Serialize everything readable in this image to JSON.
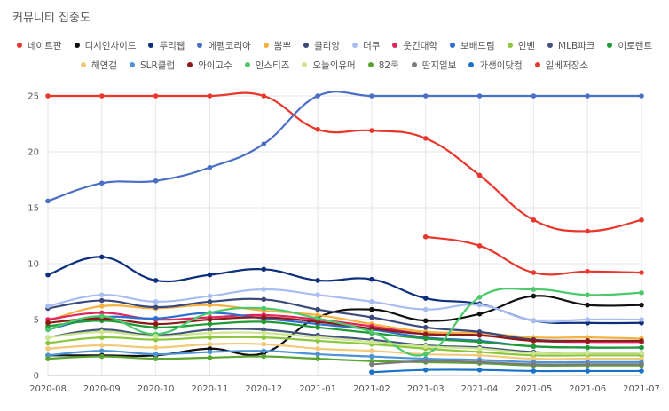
{
  "title": "커뮤니티 집중도",
  "chart_data": {
    "type": "line",
    "title": "커뮤니티 집중도",
    "xlabel": "",
    "ylabel": "",
    "ylim": [
      0,
      25
    ],
    "yticks": [
      0,
      5,
      10,
      15,
      20,
      25
    ],
    "grid": true,
    "legend_position": "top",
    "x": [
      "2020-08",
      "2020-09",
      "2020-10",
      "2020-11",
      "2020-12",
      "2021-01",
      "2021-02",
      "2021-03",
      "2021-04",
      "2021-05",
      "2021-06",
      "2021-07"
    ],
    "series": [
      {
        "name": "네이트판",
        "color": "#e8372c",
        "values": [
          25,
          25,
          25,
          25,
          25,
          22,
          21.9,
          21.2,
          17.9,
          13.9,
          12.9,
          13.9
        ]
      },
      {
        "name": "디시인사이드",
        "color": "#111111",
        "values": [
          1.8,
          1.8,
          1.8,
          2.4,
          2,
          5.2,
          5.9,
          4.9,
          5.5,
          7.1,
          6.3,
          6.3
        ]
      },
      {
        "name": "루리웹",
        "color": "#0e2f7d",
        "values": [
          9,
          10.6,
          8.5,
          9,
          9.5,
          8.5,
          8.6,
          6.9,
          6.4,
          4.9,
          4.7,
          4.7
        ]
      },
      {
        "name": "에펨코리아",
        "color": "#4a6fc4",
        "values": [
          15.6,
          17.2,
          17.4,
          18.6,
          20.7,
          25,
          25,
          25,
          25,
          25,
          25,
          25
        ]
      },
      {
        "name": "뽐뿌",
        "color": "#f4b140",
        "values": [
          4.9,
          6.2,
          6,
          6.3,
          5.8,
          5.4,
          4.6,
          3.9,
          3.8,
          3.4,
          3.4,
          3.3
        ]
      },
      {
        "name": "클리앙",
        "color": "#3b4a7a",
        "values": [
          6,
          6.7,
          6.1,
          6.6,
          6.8,
          5.9,
          5.2,
          4.3,
          3.9,
          3.2,
          3.1,
          3
        ]
      },
      {
        "name": "더쿠",
        "color": "#a8bdf0",
        "values": [
          6.2,
          7.2,
          6.6,
          7.1,
          7.7,
          7.2,
          6.6,
          5.9,
          6.3,
          4.9,
          5,
          5
        ]
      },
      {
        "name": "웃긴대학",
        "color": "#e0245e",
        "values": [
          5,
          5.6,
          5,
          5.2,
          5.4,
          5,
          4.4,
          3.7,
          3.6,
          3.1,
          3,
          3
        ]
      },
      {
        "name": "보배드림",
        "color": "#2b6fd0",
        "values": [
          4.1,
          5.2,
          5.1,
          5.6,
          5.1,
          4.6,
          4.1,
          3.4,
          3.1,
          2.6,
          2.5,
          2.5
        ]
      },
      {
        "name": "인벤",
        "color": "#8cc63f",
        "values": [
          2.9,
          3.4,
          3.2,
          3.4,
          3.4,
          3.1,
          2.8,
          2.4,
          2.1,
          1.8,
          1.8,
          1.8
        ]
      },
      {
        "name": "MLB파크",
        "color": "#44567e",
        "values": [
          3.4,
          4.1,
          3.6,
          4.1,
          4.1,
          3.6,
          3.2,
          2.7,
          2.5,
          2.1,
          2,
          2
        ]
      },
      {
        "name": "이토렌트",
        "color": "#1f9a35",
        "values": [
          4.4,
          4.9,
          4.3,
          4.6,
          4.8,
          4.3,
          3.8,
          3.3,
          3,
          2.6,
          2.5,
          2.5
        ]
      },
      {
        "name": "해연갤",
        "color": "#f2c879",
        "values": [
          2.4,
          2.7,
          2.5,
          2.8,
          2.8,
          2.4,
          2.2,
          1.9,
          1.8,
          1.5,
          1.5,
          1.5
        ]
      },
      {
        "name": "SLR클럽",
        "color": "#4e93d6",
        "values": [
          1.8,
          2.2,
          1.9,
          2.1,
          2.2,
          1.9,
          1.7,
          1.5,
          1.4,
          1.2,
          1.2,
          1.2
        ]
      },
      {
        "name": "와이고수",
        "color": "#8b1a1a",
        "values": [
          4.7,
          5.1,
          4.6,
          5,
          5.2,
          4.8,
          4.2,
          3.7,
          3.6,
          3.1,
          3.1,
          3.1
        ]
      },
      {
        "name": "인스티즈",
        "color": "#4cc96a",
        "values": [
          4.1,
          5.3,
          3.7,
          5.6,
          6,
          5.1,
          3.9,
          1.9,
          7,
          7.7,
          7.2,
          7.4
        ]
      },
      {
        "name": "오늘의유머",
        "color": "#cde58c",
        "values": [
          3.4,
          3.9,
          3.5,
          3.8,
          3.8,
          3.4,
          3,
          2.6,
          2.4,
          2,
          2,
          2
        ]
      },
      {
        "name": "82쿡",
        "color": "#5aa532",
        "values": [
          1.5,
          1.7,
          1.5,
          1.6,
          1.7,
          1.5,
          1.3,
          1.2,
          1.1,
          0.9,
          0.9,
          0.9
        ]
      },
      {
        "name": "딴지일보",
        "color": "#7a7a7a",
        "values": [
          null,
          null,
          null,
          null,
          null,
          null,
          1,
          1.3,
          1.2,
          1,
          1,
          1
        ]
      },
      {
        "name": "가생이닷컴",
        "color": "#1a73c8",
        "values": [
          null,
          null,
          null,
          null,
          null,
          null,
          0.3,
          0.5,
          0.5,
          0.4,
          0.4,
          0.4
        ]
      },
      {
        "name": "일베저장소",
        "color": "#e8372c",
        "values": [
          null,
          null,
          null,
          null,
          null,
          null,
          null,
          12.4,
          11.6,
          9.2,
          9.3,
          9.2
        ]
      }
    ]
  }
}
